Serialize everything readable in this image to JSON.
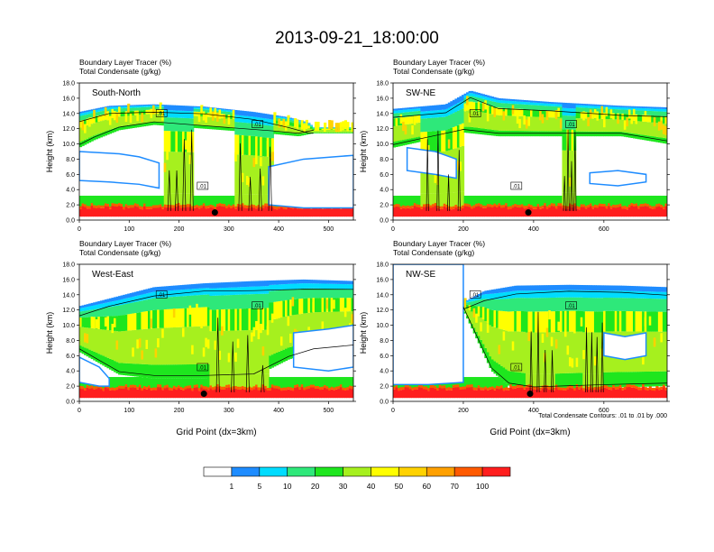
{
  "figure": {
    "title": "2013-09-21_18:00:00",
    "contour_note": "Total Condensate Contours: .01 to .01 by .000",
    "xlabel": "Grid Point (dx=3km)"
  },
  "colors": {
    "levels": [
      "#ffffff",
      "#1e8cff",
      "#00dcff",
      "#2ee87a",
      "#1ee61e",
      "#a6f01e",
      "#ffff00",
      "#ffd200",
      "#ffa000",
      "#ff5a00",
      "#ff1e1e"
    ],
    "contour": "#000000"
  },
  "colorbar": {
    "labels": [
      "1",
      "5",
      "10",
      "20",
      "30",
      "40",
      "50",
      "60",
      "70",
      "100"
    ]
  },
  "panels": [
    {
      "name": "South-North",
      "header1": "Boundary Layer Tracer   (%)",
      "header2": "Total Condensate   (g/kg)",
      "ylabel": "Height (km)",
      "xlabel": "",
      "xmax": 550,
      "xticks": [
        0,
        100,
        200,
        300,
        400,
        500
      ],
      "contour_label": ".01",
      "marker_x": 272,
      "cloud_base": [
        [
          0,
          9.5
        ],
        [
          30,
          10.5
        ],
        [
          80,
          11.8
        ],
        [
          150,
          12.5
        ],
        [
          250,
          12.0
        ],
        [
          330,
          11.6
        ],
        [
          390,
          11.3
        ],
        [
          440,
          11.0
        ],
        [
          470,
          11.4
        ]
      ],
      "cloud_top": [
        [
          0,
          14.2
        ],
        [
          60,
          15.0
        ],
        [
          150,
          15.2
        ],
        [
          250,
          14.9
        ],
        [
          350,
          14.2
        ],
        [
          420,
          13.5
        ],
        [
          460,
          12.8
        ],
        [
          470,
          12.2
        ]
      ],
      "convective_x": [
        [
          170,
          230
        ],
        [
          310,
          390
        ]
      ],
      "gap_top": [
        [
          0,
          9.0
        ],
        [
          80,
          8.7
        ],
        [
          120,
          8.3
        ],
        [
          160,
          7.5
        ]
      ],
      "gap_bottom": [
        [
          0,
          5.2
        ],
        [
          60,
          5.0
        ],
        [
          120,
          4.7
        ],
        [
          160,
          4.2
        ]
      ],
      "gap2_top": [
        [
          380,
          7.0
        ],
        [
          450,
          8.0
        ],
        [
          550,
          8.5
        ]
      ],
      "gap2_bottom": [
        [
          380,
          2.0
        ],
        [
          450,
          1.6
        ],
        [
          550,
          1.6
        ]
      ]
    },
    {
      "name": "SW-NE",
      "header1": "Boundary Layer Tracer   (%)",
      "header2": "Total Condensate   (g/kg)",
      "ylabel": "Height (km)",
      "xlabel": "",
      "xmax": 780,
      "xticks": [
        0,
        200,
        400,
        600
      ],
      "contour_label": ".01",
      "marker_x": 385,
      "cloud_base": [
        [
          0,
          9.5
        ],
        [
          100,
          10.5
        ],
        [
          200,
          11.5
        ],
        [
          300,
          11.0
        ],
        [
          500,
          11.0
        ],
        [
          650,
          11.0
        ],
        [
          780,
          10.0
        ]
      ],
      "cloud_top": [
        [
          0,
          14.6
        ],
        [
          150,
          15.2
        ],
        [
          220,
          17.0
        ],
        [
          300,
          16.0
        ],
        [
          450,
          15.5
        ],
        [
          650,
          15.0
        ],
        [
          780,
          14.8
        ]
      ],
      "convective_x": [
        [
          80,
          200
        ],
        [
          480,
          520
        ]
      ],
      "gap_top": [
        [
          40,
          9.5
        ],
        [
          120,
          9.0
        ],
        [
          180,
          8.0
        ]
      ],
      "gap_bottom": [
        [
          40,
          6.5
        ],
        [
          120,
          6.0
        ],
        [
          180,
          5.5
        ]
      ],
      "gap2_top": [
        [
          560,
          6.2
        ],
        [
          640,
          6.5
        ],
        [
          720,
          6.0
        ]
      ],
      "gap2_bottom": [
        [
          560,
          4.8
        ],
        [
          640,
          4.5
        ],
        [
          720,
          5.0
        ]
      ]
    },
    {
      "name": "West-East",
      "header1": "Boundary Layer Tracer   (%)",
      "header2": "Total Condensate   (g/kg)",
      "ylabel": "Height (km)",
      "xlabel": "Grid Point (dx=3km)",
      "xmax": 550,
      "xticks": [
        0,
        100,
        200,
        300,
        400,
        500
      ],
      "contour_label": ".01",
      "marker_x": 250,
      "cloud_base": [
        [
          0,
          6.5
        ],
        [
          40,
          5.0
        ],
        [
          80,
          3.5
        ],
        [
          150,
          3.0
        ],
        [
          250,
          3.0
        ],
        [
          350,
          3.2
        ],
        [
          420,
          5.5
        ],
        [
          470,
          6.5
        ],
        [
          550,
          7.0
        ]
      ],
      "cloud_top": [
        [
          0,
          12.5
        ],
        [
          60,
          13.5
        ],
        [
          150,
          15.0
        ],
        [
          250,
          15.5
        ],
        [
          350,
          15.8
        ],
        [
          450,
          16.0
        ],
        [
          550,
          15.8
        ]
      ],
      "convective_x": [
        [
          260,
          380
        ]
      ],
      "gap_top": [
        [
          0,
          5.8
        ],
        [
          40,
          4.5
        ],
        [
          60,
          3.0
        ]
      ],
      "gap_bottom": [
        [
          0,
          2.5
        ],
        [
          40,
          2.0
        ],
        [
          60,
          2.0
        ]
      ],
      "gap2_top": [
        [
          430,
          9.0
        ],
        [
          500,
          9.5
        ],
        [
          550,
          10.0
        ]
      ],
      "gap2_bottom": [
        [
          430,
          4.5
        ],
        [
          500,
          4.0
        ],
        [
          550,
          4.5
        ]
      ]
    },
    {
      "name": "NW-SE",
      "header1": "Boundary Layer Tracer   (%)",
      "header2": "Total Condensate   (g/kg)",
      "ylabel": "Height (km)",
      "xlabel": "Grid Point (dx=3km)",
      "xmax": 780,
      "xticks": [
        0,
        200,
        400,
        600
      ],
      "contour_label": ".01",
      "marker_x": 390,
      "cloud_base": [
        [
          200,
          12.0
        ],
        [
          240,
          8.0
        ],
        [
          280,
          4.0
        ],
        [
          330,
          2.0
        ],
        [
          400,
          1.5
        ],
        [
          600,
          1.8
        ],
        [
          780,
          2.0
        ]
      ],
      "cloud_top": [
        [
          200,
          13.0
        ],
        [
          260,
          14.5
        ],
        [
          350,
          15.2
        ],
        [
          500,
          15.3
        ],
        [
          650,
          15.2
        ],
        [
          780,
          15.0
        ]
      ],
      "convective_x": [
        [
          380,
          460
        ],
        [
          540,
          600
        ]
      ],
      "gap_top": [
        [
          0,
          18.0
        ],
        [
          100,
          18.0
        ],
        [
          200,
          18.0
        ]
      ],
      "gap_bottom": [
        [
          0,
          2.2
        ],
        [
          100,
          2.2
        ],
        [
          200,
          2.5
        ]
      ],
      "gap2_top": [
        [
          600,
          9.0
        ],
        [
          660,
          8.5
        ],
        [
          720,
          9.0
        ]
      ],
      "gap2_bottom": [
        [
          600,
          6.0
        ],
        [
          660,
          5.5
        ],
        [
          720,
          6.0
        ]
      ]
    }
  ],
  "chart_data": [
    {
      "type": "heatmap",
      "title": "South-North",
      "subtitle": "Boundary Layer Tracer (%) / Total Condensate (g/kg)",
      "xlabel": "",
      "ylabel": "Height (km)",
      "xlim": [
        0,
        550
      ],
      "ylim": [
        0,
        18
      ],
      "x_ticks": [
        0,
        100,
        200,
        300,
        400,
        500
      ],
      "y_ticks": [
        0.0,
        2.0,
        4.0,
        6.0,
        8.0,
        10.0,
        12.0,
        14.0,
        16.0,
        18.0
      ],
      "color_levels": [
        1,
        5,
        10,
        20,
        30,
        40,
        50,
        60,
        70,
        100
      ]
    },
    {
      "type": "heatmap",
      "title": "SW-NE",
      "subtitle": "Boundary Layer Tracer (%) / Total Condensate (g/kg)",
      "xlabel": "",
      "ylabel": "Height (km)",
      "xlim": [
        0,
        780
      ],
      "ylim": [
        0,
        18
      ],
      "x_ticks": [
        0,
        200,
        400,
        600
      ],
      "y_ticks": [
        0.0,
        2.0,
        4.0,
        6.0,
        8.0,
        10.0,
        12.0,
        14.0,
        16.0,
        18.0
      ],
      "color_levels": [
        1,
        5,
        10,
        20,
        30,
        40,
        50,
        60,
        70,
        100
      ]
    },
    {
      "type": "heatmap",
      "title": "West-East",
      "subtitle": "Boundary Layer Tracer (%) / Total Condensate (g/kg)",
      "xlabel": "Grid Point (dx=3km)",
      "ylabel": "Height (km)",
      "xlim": [
        0,
        550
      ],
      "ylim": [
        0,
        18
      ],
      "x_ticks": [
        0,
        100,
        200,
        300,
        400,
        500
      ],
      "y_ticks": [
        0.0,
        2.0,
        4.0,
        6.0,
        8.0,
        10.0,
        12.0,
        14.0,
        16.0,
        18.0
      ],
      "color_levels": [
        1,
        5,
        10,
        20,
        30,
        40,
        50,
        60,
        70,
        100
      ]
    },
    {
      "type": "heatmap",
      "title": "NW-SE",
      "subtitle": "Boundary Layer Tracer (%) / Total Condensate (g/kg)",
      "xlabel": "Grid Point (dx=3km)",
      "ylabel": "Height (km)",
      "xlim": [
        0,
        780
      ],
      "ylim": [
        0,
        18
      ],
      "x_ticks": [
        0,
        200,
        400,
        600
      ],
      "y_ticks": [
        0.0,
        2.0,
        4.0,
        6.0,
        8.0,
        10.0,
        12.0,
        14.0,
        16.0,
        18.0
      ],
      "color_levels": [
        1,
        5,
        10,
        20,
        30,
        40,
        50,
        60,
        70,
        100
      ]
    }
  ]
}
